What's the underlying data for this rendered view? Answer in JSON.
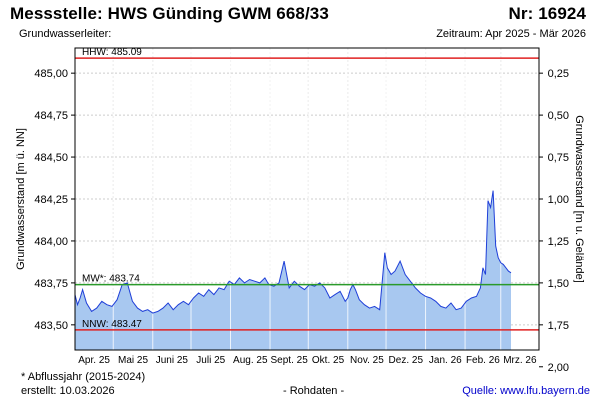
{
  "header": {
    "title": "Messstelle: HWS Günding GWM 668/33",
    "number": "Nr: 16924",
    "aquifer_label": "Grundwasserleiter:",
    "period": "Zeitraum: Apr 2025 - Mär 2026"
  },
  "footer": {
    "footnote": "* Abflussjahr (2015-2024)",
    "created": "erstellt:  10.03.2026",
    "raw": "- Rohdaten -",
    "source": "Quelle: www.lfu.bayern.de"
  },
  "colors": {
    "fill": "#a8c8f0",
    "line": "#1f3fd8",
    "hhw": "#e02020",
    "mw": "#2a9a2a",
    "nnw": "#e02020",
    "grid": "#cccccc"
  },
  "chart_data": {
    "type": "area",
    "ylabel": "Grundwasserstand [m ü. NN]",
    "y2label": "Grundwasserstand [m u. Gelände]",
    "ylim": [
      483.35,
      485.15
    ],
    "y_ticks": [
      "483,50",
      "483,75",
      "484,00",
      "484,25",
      "484,50",
      "484,75",
      "485,00"
    ],
    "y_tick_values": [
      483.5,
      483.75,
      484.0,
      484.25,
      484.5,
      484.75,
      485.0
    ],
    "y2_ticks": [
      "0,25",
      "0,50",
      "0,75",
      "1,00",
      "1,25",
      "1,50",
      "1,75",
      "2,00"
    ],
    "y2_tick_values": [
      0.25,
      0.5,
      0.75,
      1.0,
      1.25,
      1.5,
      1.75,
      2.0
    ],
    "y2_reference": 485.25,
    "x_tick_labels": [
      "Apr. 25",
      "Mai 25",
      "Juni 25",
      "Juli 25",
      "Aug. 25",
      "Sept. 25",
      "Okt. 25",
      "Nov. 25",
      "Dez. 25",
      "Jan. 26",
      "Feb. 26",
      "Mrz. 26"
    ],
    "x_tick_dates": [
      "2025-04-01",
      "2025-05-01",
      "2025-06-01",
      "2025-07-01",
      "2025-08-01",
      "2025-09-01",
      "2025-10-01",
      "2025-11-01",
      "2025-12-01",
      "2026-01-01",
      "2026-02-01",
      "2026-03-01"
    ],
    "x_range": [
      "2025-04-01",
      "2026-03-31"
    ],
    "grid": true,
    "reference_lines": [
      {
        "label": "HHW: 485.09",
        "value": 485.09,
        "color": "hhw"
      },
      {
        "label": "MW*: 483.74",
        "value": 483.74,
        "color": "mw"
      },
      {
        "label": "NNW: 483.47",
        "value": 483.47,
        "color": "nnw"
      }
    ],
    "series": [
      {
        "x": [
          "2025-04-01",
          "2025-04-03",
          "2025-04-05",
          "2025-04-07",
          "2025-04-10",
          "2025-04-14",
          "2025-04-18",
          "2025-04-22",
          "2025-04-26",
          "2025-04-30",
          "2025-05-04",
          "2025-05-08",
          "2025-05-12",
          "2025-05-16",
          "2025-05-20",
          "2025-05-24",
          "2025-05-28",
          "2025-06-01",
          "2025-06-05",
          "2025-06-09",
          "2025-06-13",
          "2025-06-17",
          "2025-06-21",
          "2025-06-25",
          "2025-06-29",
          "2025-07-03",
          "2025-07-07",
          "2025-07-11",
          "2025-07-15",
          "2025-07-19",
          "2025-07-23",
          "2025-07-27",
          "2025-07-31",
          "2025-08-04",
          "2025-08-08",
          "2025-08-12",
          "2025-08-16",
          "2025-08-20",
          "2025-08-24",
          "2025-08-28",
          "2025-08-31",
          "2025-09-04",
          "2025-09-08",
          "2025-09-12",
          "2025-09-16",
          "2025-09-20",
          "2025-09-24",
          "2025-09-28",
          "2025-10-02",
          "2025-10-06",
          "2025-10-10",
          "2025-10-14",
          "2025-10-18",
          "2025-10-22",
          "2025-10-26",
          "2025-10-30",
          "2025-11-01",
          "2025-11-03",
          "2025-11-05",
          "2025-11-07",
          "2025-11-10",
          "2025-11-14",
          "2025-11-18",
          "2025-11-22",
          "2025-11-26",
          "2025-11-30",
          "2025-12-02",
          "2025-12-05",
          "2025-12-08",
          "2025-12-12",
          "2025-12-16",
          "2025-12-20",
          "2025-12-24",
          "2025-12-28",
          "2026-01-01",
          "2026-01-05",
          "2026-01-09",
          "2026-01-13",
          "2026-01-17",
          "2026-01-21",
          "2026-01-25",
          "2026-01-29",
          "2026-02-02",
          "2026-02-06",
          "2026-02-10",
          "2026-02-13",
          "2026-02-15",
          "2026-02-17",
          "2026-02-19",
          "2026-02-21",
          "2026-02-23",
          "2026-02-25",
          "2026-02-27",
          "2026-03-01",
          "2026-03-03",
          "2026-03-05",
          "2026-03-07",
          "2026-03-09"
        ],
        "y": [
          483.68,
          483.62,
          483.66,
          483.71,
          483.63,
          483.58,
          483.6,
          483.64,
          483.62,
          483.61,
          483.65,
          483.74,
          483.75,
          483.64,
          483.6,
          483.58,
          483.59,
          483.57,
          483.58,
          483.6,
          483.63,
          483.59,
          483.62,
          483.64,
          483.62,
          483.66,
          483.69,
          483.67,
          483.71,
          483.68,
          483.72,
          483.71,
          483.76,
          483.74,
          483.78,
          483.75,
          483.77,
          483.76,
          483.75,
          483.78,
          483.74,
          483.73,
          483.75,
          483.88,
          483.72,
          483.76,
          483.73,
          483.71,
          483.74,
          483.73,
          483.75,
          483.72,
          483.66,
          483.68,
          483.7,
          483.64,
          483.66,
          483.71,
          483.74,
          483.71,
          483.65,
          483.62,
          483.6,
          483.61,
          483.59,
          483.93,
          483.84,
          483.8,
          483.82,
          483.88,
          483.8,
          483.76,
          483.72,
          483.69,
          483.67,
          483.66,
          483.64,
          483.61,
          483.6,
          483.63,
          483.59,
          483.6,
          483.64,
          483.66,
          483.67,
          483.72,
          483.84,
          483.8,
          484.24,
          484.2,
          484.3,
          483.97,
          483.9,
          483.87,
          483.86,
          483.84,
          483.82,
          483.81
        ]
      }
    ]
  }
}
